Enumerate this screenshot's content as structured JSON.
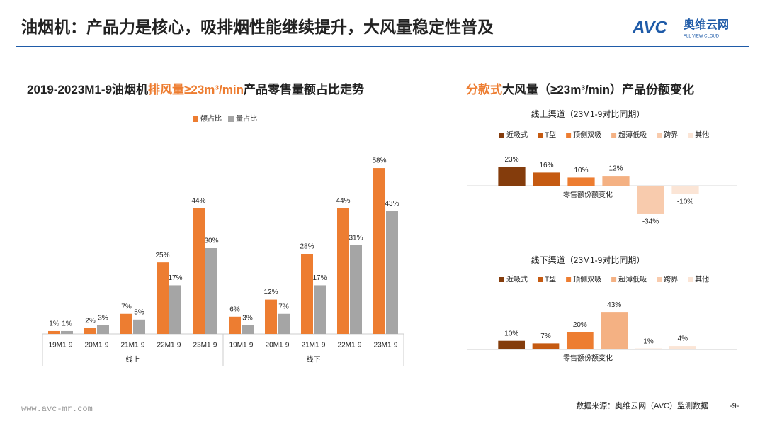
{
  "header": {
    "title": "油烟机：产品力是核心，吸排烟性能继续提升，大风量稳定性普及",
    "logo": "AVC",
    "logo_cn": "奥维云网",
    "logo_en": "ALL VIEW CLOUD"
  },
  "section_title_parts": [
    "分款式",
    "大风量（≥23m³/min）产品份额变化"
  ],
  "footer": {
    "website": "www.avc-mr.com",
    "source": "数据来源：奥维云网（AVC）监测数据",
    "page": "-9-"
  },
  "chart_data": [
    {
      "type": "bar",
      "title_parts": [
        "2019-2023M1-9油烟机",
        "排风量≥23m³/min",
        "产品零售量额占比走势"
      ],
      "title_highlight_color": "#ED7D31",
      "categories": [
        "19M1-9",
        "20M1-9",
        "21M1-9",
        "22M1-9",
        "23M1-9",
        "19M1-9",
        "20M1-9",
        "21M1-9",
        "22M1-9",
        "23M1-9"
      ],
      "groups": [
        "线上",
        "线下"
      ],
      "series": [
        {
          "name": "额占比",
          "color": "#ED7D31",
          "values": [
            1,
            2,
            7,
            25,
            44,
            6,
            12,
            28,
            44,
            58
          ],
          "value_labels": [
            "1%",
            "2%",
            "7%",
            "25%",
            "44%",
            "6%",
            "12%",
            "28%",
            "44%",
            "58%"
          ]
        },
        {
          "name": "量占比",
          "color": "#A5A5A5",
          "values": [
            1,
            3,
            5,
            17,
            30,
            3,
            7,
            17,
            31,
            43
          ],
          "value_labels": [
            "1%",
            "3%",
            "5%",
            "17%",
            "30%",
            "3%",
            "7%",
            "17%",
            "31%",
            "43%"
          ]
        }
      ],
      "ylim": [
        0,
        60
      ]
    },
    {
      "type": "bar",
      "title": "线上渠道（23M1-9对比同期）",
      "x_label": "零售额份额变化",
      "categories": [
        "近吸式",
        "T型",
        "顶侧双吸",
        "超薄低吸",
        "跨界",
        "其他"
      ],
      "colors": [
        "#843C0C",
        "#C55A11",
        "#ED7D31",
        "#F4B183",
        "#F8CBAD",
        "#FBE5D6"
      ],
      "values": [
        23,
        16,
        10,
        12,
        -34,
        -10
      ],
      "value_labels": [
        "23%",
        "16%",
        "10%",
        "12%",
        "-34%",
        "-10%"
      ],
      "ylim": [
        -40,
        30
      ]
    },
    {
      "type": "bar",
      "title": "线下渠道（23M1-9对比同期）",
      "x_label": "零售额份额变化",
      "categories": [
        "近吸式",
        "T型",
        "顶侧双吸",
        "超薄低吸",
        "跨界",
        "其他"
      ],
      "colors": [
        "#843C0C",
        "#C55A11",
        "#ED7D31",
        "#F4B183",
        "#F8CBAD",
        "#FBE5D6"
      ],
      "values": [
        10,
        7,
        20,
        43,
        1,
        4
      ],
      "value_labels": [
        "10%",
        "7%",
        "20%",
        "43%",
        "1%",
        "4%"
      ],
      "ylim": [
        0,
        50
      ]
    }
  ]
}
